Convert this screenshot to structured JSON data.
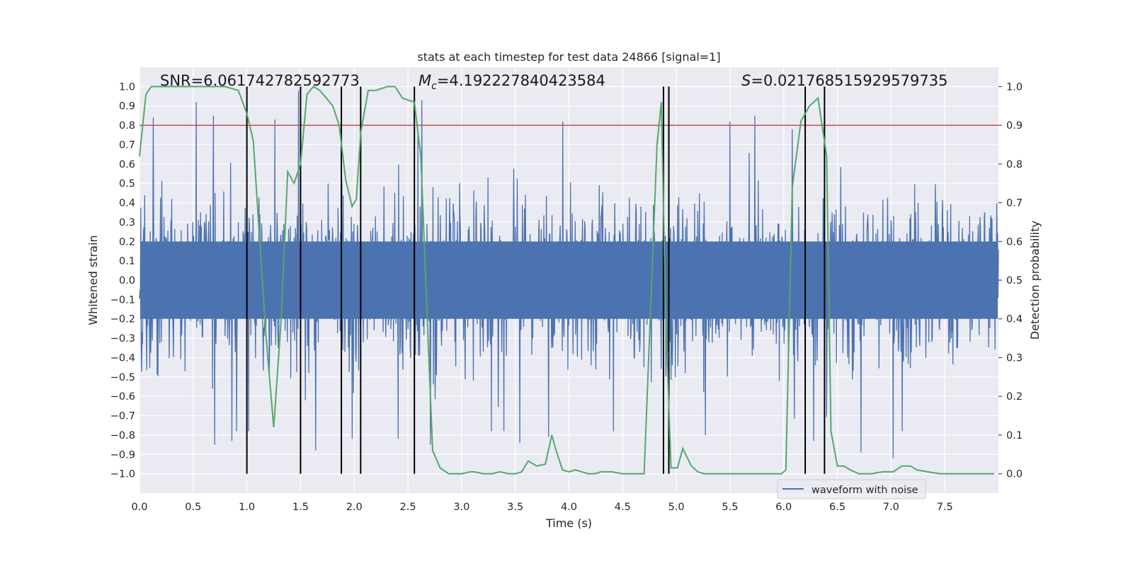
{
  "chart_data": {
    "type": "line",
    "title": "stats at each timestep for test data 24866 [signal=1]",
    "xlabel": "Time (s)",
    "ylabel_left": "Whitened strain",
    "ylabel_right": "Detection probability",
    "xlim": [
      0.0,
      8.0
    ],
    "ylim_left": [
      -1.1,
      1.1
    ],
    "ylim_right": [
      -0.05,
      1.05
    ],
    "x_ticks": [
      "0.0",
      "0.5",
      "1.0",
      "1.5",
      "2.0",
      "2.5",
      "3.0",
      "3.5",
      "4.0",
      "4.5",
      "5.0",
      "5.5",
      "6.0",
      "6.5",
      "7.0",
      "7.5"
    ],
    "y_ticks_left": [
      "1.0",
      "0.9",
      "0.8",
      "0.7",
      "0.6",
      "0.5",
      "0.4",
      "0.3",
      "0.2",
      "0.1",
      "0.0",
      "−0.1",
      "−0.2",
      "−0.3",
      "−0.4",
      "−0.5",
      "−0.6",
      "−0.7",
      "−0.8",
      "−0.9",
      "−1.0"
    ],
    "y_ticks_right": [
      "1.0",
      "0.9",
      "0.8",
      "0.7",
      "0.6",
      "0.5",
      "0.4",
      "0.3",
      "0.2",
      "0.1",
      "0.0"
    ],
    "annotations": {
      "snr": "SNR=6.061742782592773",
      "mc_symbol": "M",
      "mc_sub": "c",
      "mc_value": "=4.192227840423584",
      "s_symbol": "S",
      "s_value": "=0.021768515929579735"
    },
    "threshold_right": 0.9,
    "vertical_markers_x": [
      1.0,
      1.5,
      1.88,
      2.06,
      2.56,
      4.88,
      4.93,
      6.2,
      6.38
    ],
    "series": [
      {
        "name": "waveform with noise",
        "axis": "left",
        "color": "#4c72b0",
        "style": "dense noise, envelope mostly within ±0.6 with peaks near ±0.9",
        "peaks": [
          {
            "x": 0.13,
            "y": 0.84
          },
          {
            "x": 0.53,
            "y": 0.92
          },
          {
            "x": 0.69,
            "y": 0.85
          },
          {
            "x": 1.26,
            "y": 0.83
          },
          {
            "x": 1.48,
            "y": 0.98
          },
          {
            "x": 2.63,
            "y": 0.93
          },
          {
            "x": 3.94,
            "y": 0.82
          },
          {
            "x": 5.5,
            "y": 0.82
          },
          {
            "x": 5.73,
            "y": 0.85
          },
          {
            "x": 1.64,
            "y": -0.88
          },
          {
            "x": 1.98,
            "y": -0.82
          },
          {
            "x": 2.41,
            "y": -0.82
          },
          {
            "x": 2.71,
            "y": -0.85
          },
          {
            "x": 3.54,
            "y": -0.84
          },
          {
            "x": 3.81,
            "y": -0.81
          },
          {
            "x": 7.02,
            "y": -0.92
          },
          {
            "x": 5.27,
            "y": -0.8
          },
          {
            "x": 6.28,
            "y": -0.83
          },
          {
            "x": 6.72,
            "y": -0.89
          },
          {
            "x": 0.7,
            "y": -0.85
          },
          {
            "x": 0.86,
            "y": -0.83
          }
        ]
      },
      {
        "name": "detection probability",
        "axis": "right",
        "color": "#55a868",
        "x": [
          0.0,
          0.06,
          0.11,
          0.2,
          0.4,
          0.8,
          0.92,
          1.0,
          1.06,
          1.12,
          1.18,
          1.25,
          1.32,
          1.38,
          1.44,
          1.5,
          1.56,
          1.62,
          1.68,
          1.74,
          1.8,
          1.86,
          1.92,
          1.98,
          2.02,
          2.06,
          2.13,
          2.2,
          2.31,
          2.38,
          2.45,
          2.56,
          2.62,
          2.68,
          2.73,
          2.8,
          2.88,
          3.0,
          3.08,
          3.12,
          3.2,
          3.28,
          3.36,
          3.44,
          3.5,
          3.56,
          3.62,
          3.7,
          3.78,
          3.84,
          3.88,
          3.94,
          4.0,
          4.06,
          4.12,
          4.18,
          4.24,
          4.3,
          4.4,
          4.5,
          4.6,
          4.7,
          4.82,
          4.86,
          4.9,
          4.95,
          5.01,
          5.06,
          5.14,
          5.2,
          5.26,
          5.32,
          5.5,
          5.7,
          5.98,
          6.02,
          6.08,
          6.16,
          6.24,
          6.32,
          6.4,
          6.44,
          6.5,
          6.56,
          6.62,
          6.7,
          6.82,
          6.92,
          7.02,
          7.1,
          7.18,
          7.24,
          7.34,
          7.46,
          7.56,
          7.68,
          7.8,
          7.96
        ],
        "y": [
          0.82,
          0.98,
          1.0,
          1.0,
          1.0,
          1.0,
          0.99,
          0.93,
          0.86,
          0.6,
          0.35,
          0.12,
          0.4,
          0.78,
          0.75,
          0.8,
          0.98,
          1.0,
          0.99,
          0.97,
          0.95,
          0.9,
          0.76,
          0.69,
          0.71,
          0.88,
          0.99,
          0.99,
          1.0,
          1.0,
          0.97,
          0.96,
          0.82,
          0.4,
          0.06,
          0.015,
          0.0,
          0.0,
          0.005,
          0.005,
          0.0,
          0.0,
          0.005,
          0.0,
          0.0,
          0.005,
          0.033,
          0.02,
          0.025,
          0.1,
          0.06,
          0.01,
          0.005,
          0.01,
          0.005,
          0.0,
          0.0,
          0.005,
          0.005,
          0.0,
          0.0,
          0.0,
          0.85,
          0.96,
          0.42,
          0.015,
          0.015,
          0.065,
          0.02,
          0.005,
          0.0,
          0.0,
          0.0,
          0.0,
          0.0,
          0.01,
          0.74,
          0.91,
          0.95,
          0.97,
          0.82,
          0.11,
          0.02,
          0.02,
          0.01,
          0.0,
          0.0,
          0.005,
          0.005,
          0.02,
          0.02,
          0.01,
          0.005,
          0.0,
          0.0,
          0.0,
          0.0,
          0.0
        ]
      }
    ],
    "legend": {
      "label": "waveform with noise",
      "placement": "lower-right"
    },
    "grid": true
  }
}
